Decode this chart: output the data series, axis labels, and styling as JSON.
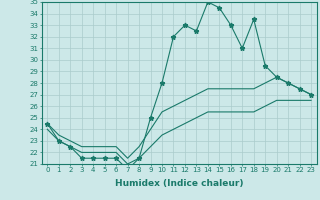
{
  "x": [
    0,
    1,
    2,
    3,
    4,
    5,
    6,
    7,
    8,
    9,
    10,
    11,
    12,
    13,
    14,
    15,
    16,
    17,
    18,
    19,
    20,
    21,
    22,
    23
  ],
  "main_line": [
    24.5,
    23.0,
    22.5,
    21.5,
    21.5,
    21.5,
    21.5,
    20.5,
    21.5,
    25.0,
    28.0,
    32.0,
    33.0,
    32.5,
    35.0,
    34.5,
    33.0,
    31.0,
    33.5,
    29.5,
    28.5,
    28.0,
    27.5,
    27.0
  ],
  "upper_line": [
    24.5,
    23.5,
    23.0,
    22.5,
    22.5,
    22.5,
    22.5,
    21.5,
    22.5,
    24.0,
    25.5,
    26.0,
    26.5,
    27.0,
    27.5,
    27.5,
    27.5,
    27.5,
    27.5,
    28.0,
    28.5,
    28.0,
    27.5,
    27.0
  ],
  "lower_line": [
    24.0,
    23.0,
    22.5,
    22.0,
    22.0,
    22.0,
    22.0,
    21.0,
    21.5,
    22.5,
    23.5,
    24.0,
    24.5,
    25.0,
    25.5,
    25.5,
    25.5,
    25.5,
    25.5,
    26.0,
    26.5,
    26.5,
    26.5,
    26.5
  ],
  "color": "#1a7a6a",
  "bg_color": "#cce8e8",
  "grid_color": "#aacccc",
  "xlabel": "Humidex (Indice chaleur)",
  "ylim": [
    21,
    35
  ],
  "xlim": [
    -0.5,
    23.5
  ],
  "yticks": [
    21,
    22,
    23,
    24,
    25,
    26,
    27,
    28,
    29,
    30,
    31,
    32,
    33,
    34,
    35
  ],
  "xticks": [
    0,
    1,
    2,
    3,
    4,
    5,
    6,
    7,
    8,
    9,
    10,
    11,
    12,
    13,
    14,
    15,
    16,
    17,
    18,
    19,
    20,
    21,
    22,
    23
  ],
  "marker": "*",
  "linewidth": 0.8,
  "markersize": 3.5,
  "tick_fontsize": 5.0,
  "xlabel_fontsize": 6.5
}
